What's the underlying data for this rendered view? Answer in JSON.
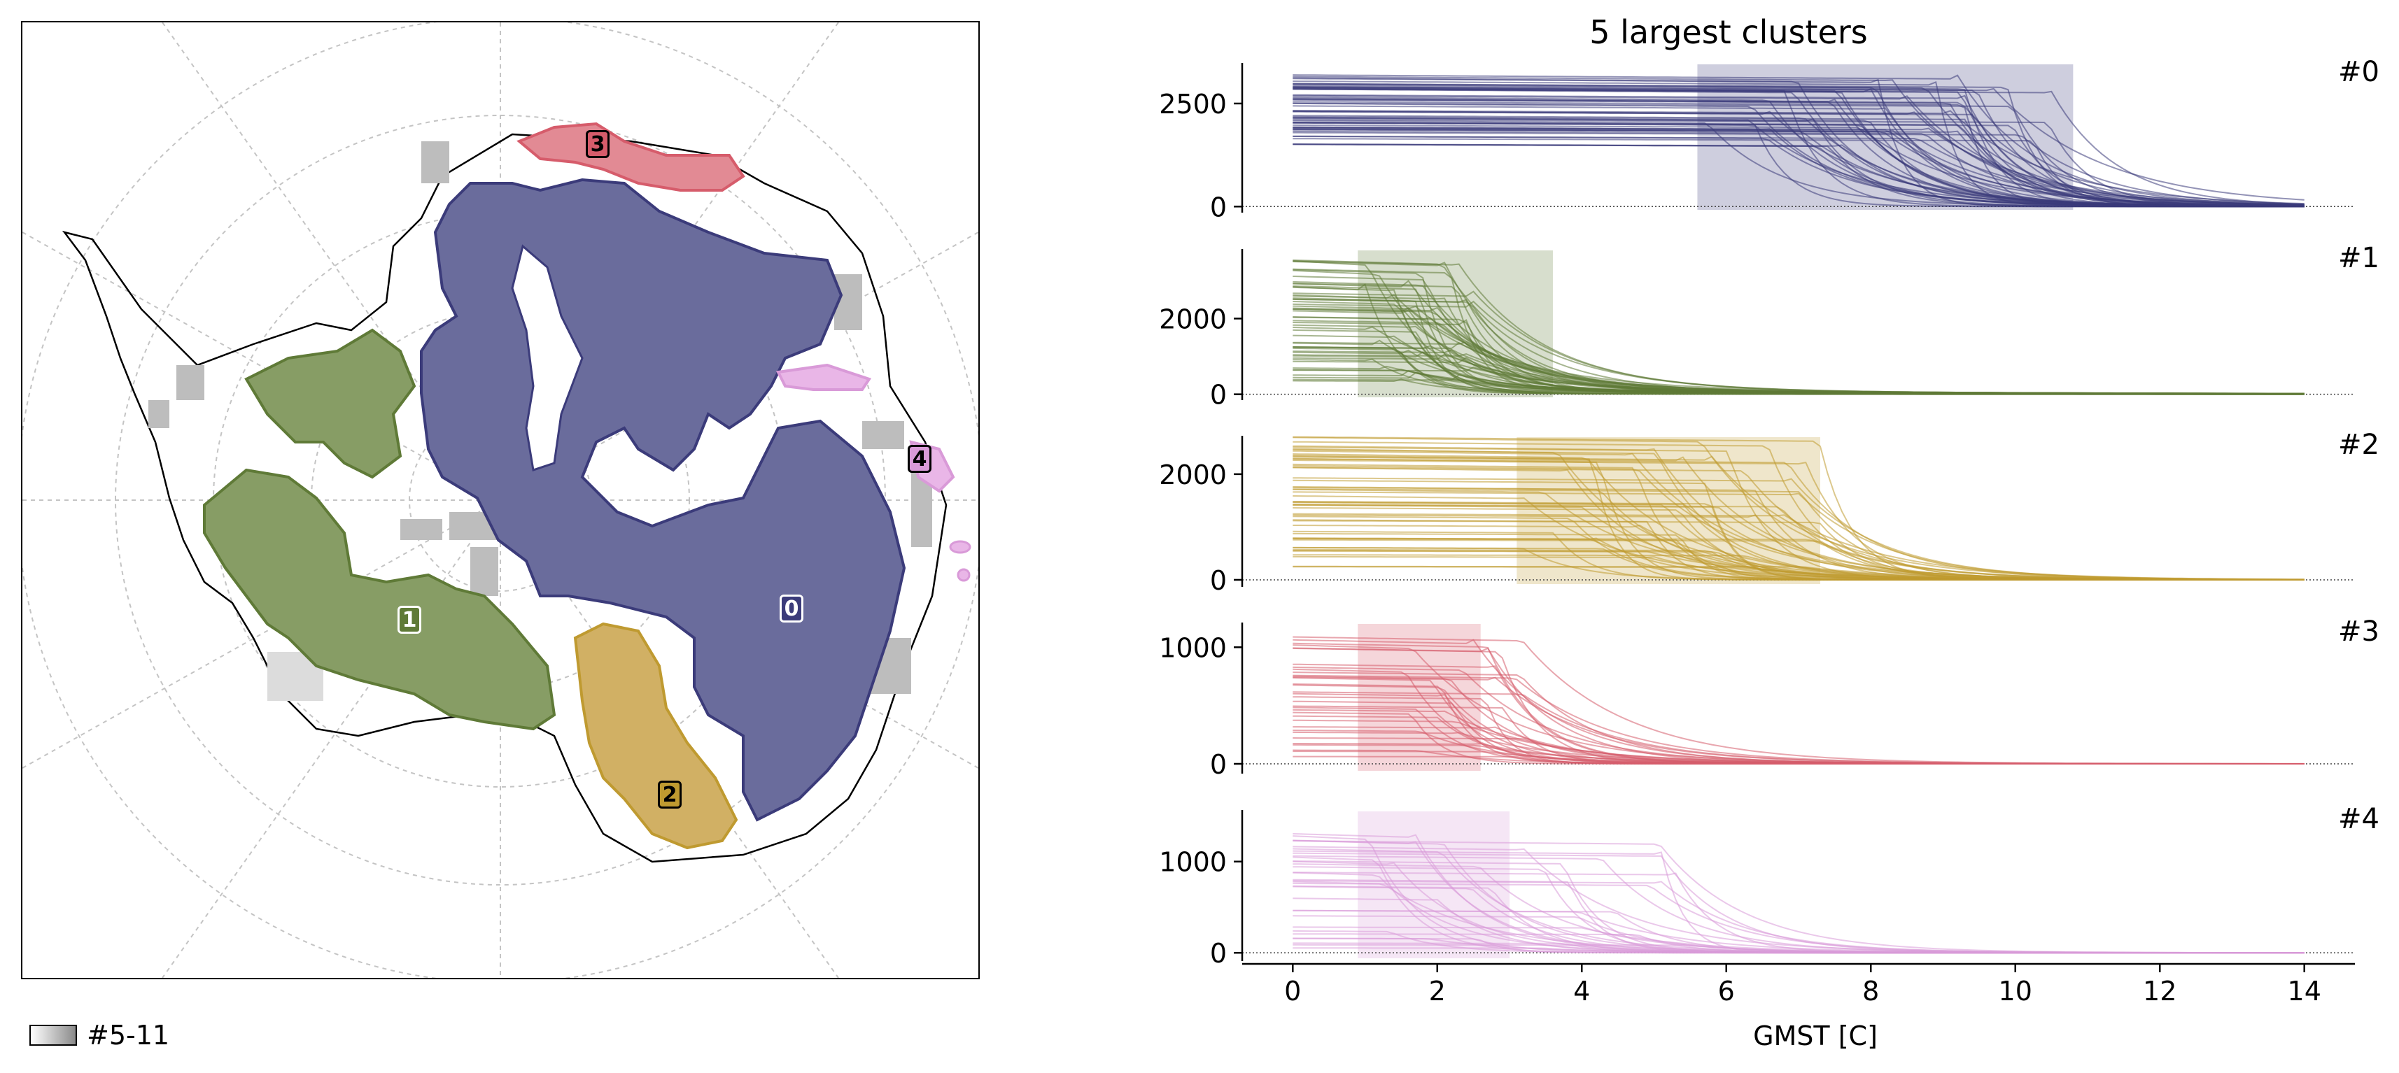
{
  "legend": {
    "label": "#5-11"
  },
  "map": {
    "cluster_labels": [
      "0",
      "1",
      "2",
      "3",
      "4"
    ],
    "cluster_colors": [
      "#3b3b7a",
      "#5f7a37",
      "#bf9a30",
      "#d65c6b",
      "#d99ad8"
    ],
    "other_cluster_color": "#9a9a9a"
  },
  "chart_data": {
    "type": "line",
    "title": "5 largest clusters",
    "xlabel": "GMST [C]",
    "xlim": [
      -0.7,
      14.7
    ],
    "xticks": [
      0,
      2,
      4,
      6,
      8,
      10,
      12,
      14
    ],
    "panels": [
      {
        "name": "#0",
        "color": "#3b3b7a",
        "ylim": [
          -80,
          3450
        ],
        "yticks": [
          0,
          2500
        ],
        "shade": [
          5.6,
          10.8
        ],
        "plateau": [
          1500,
          3200
        ],
        "drop": [
          5.6,
          10.5
        ],
        "n": 60
      },
      {
        "name": "#1",
        "color": "#5f7a37",
        "ylim": [
          -80,
          3800
        ],
        "yticks": [
          0,
          2000
        ],
        "shade": [
          0.9,
          3.6
        ],
        "plateau": [
          300,
          3600
        ],
        "drop": [
          0.9,
          2.5
        ],
        "n": 55,
        "tail": 150
      },
      {
        "name": "#2",
        "color": "#bf9a30",
        "ylim": [
          -80,
          2700
        ],
        "yticks": [
          0,
          2000
        ],
        "shade": [
          3.1,
          7.3
        ],
        "plateau": [
          200,
          2800
        ],
        "drop": [
          3.1,
          7.4
        ],
        "n": 55
      },
      {
        "name": "#3",
        "color": "#d65c6b",
        "ylim": [
          -60,
          1200
        ],
        "yticks": [
          0,
          1000
        ],
        "shade": [
          0.9,
          2.6
        ],
        "plateau": [
          50,
          1100
        ],
        "drop": [
          0.9,
          3.2
        ],
        "n": 35
      },
      {
        "name": "#4",
        "color": "#d99ad8",
        "ylim": [
          -60,
          1550
        ],
        "yticks": [
          0,
          1000
        ],
        "shade": [
          0.9,
          3.0
        ],
        "plateau": [
          50,
          1450
        ],
        "drop": [
          0.9,
          5.5
        ],
        "n": 35
      }
    ]
  }
}
